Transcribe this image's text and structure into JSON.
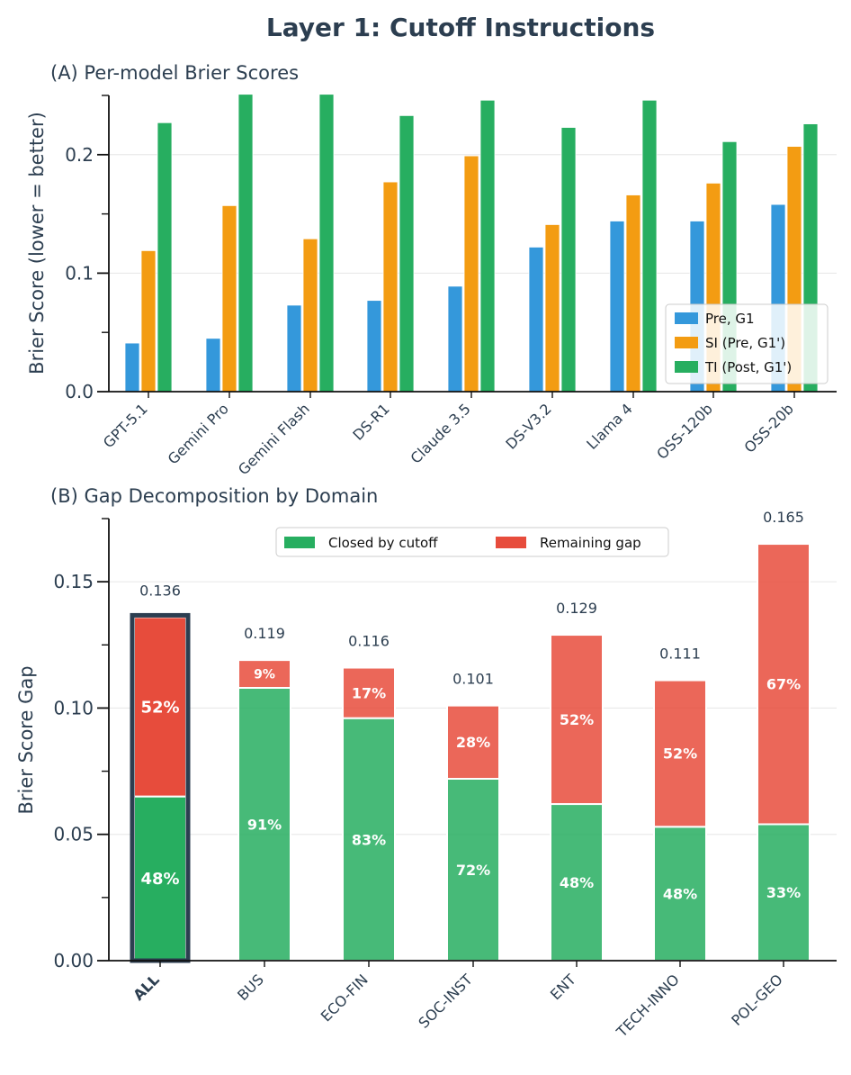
{
  "figure_title": "Layer 1: Cutoff Instructions",
  "chart_data": [
    {
      "type": "bar",
      "title": "(A) Per-model Brier Scores",
      "ylabel": "Brier Score (lower = better)",
      "xlabel": "",
      "ylim": [
        0,
        0.25
      ],
      "yticks": [
        "0.0",
        "0.1",
        "0.2"
      ],
      "categories": [
        "GPT-5.1",
        "Gemini Pro",
        "Gemini Flash",
        "DS-R1",
        "Claude 3.5",
        "DS-V3.2",
        "Llama 4",
        "OSS-120b",
        "OSS-20b"
      ],
      "series": [
        {
          "name": "Pre, G1",
          "color": "#3498db",
          "values": [
            0.041,
            0.045,
            0.073,
            0.077,
            0.089,
            0.122,
            0.144,
            0.144,
            0.158
          ]
        },
        {
          "name": "SI (Pre, G1')",
          "color": "#f39c12",
          "values": [
            0.119,
            0.157,
            0.129,
            0.177,
            0.199,
            0.141,
            0.166,
            0.176,
            0.207
          ]
        },
        {
          "name": "TI (Post, G1')",
          "color": "#27ae60",
          "values": [
            0.227,
            0.251,
            0.251,
            0.233,
            0.246,
            0.223,
            0.246,
            0.211,
            0.226
          ]
        }
      ],
      "legend_position": "lower-right",
      "grid": true
    },
    {
      "type": "bar",
      "stacked": true,
      "title": "(B) Gap Decomposition by Domain",
      "ylabel": "Brier Score Gap",
      "xlabel": "",
      "ylim": [
        0,
        0.175
      ],
      "yticks": [
        "0.00",
        "0.05",
        "0.10",
        "0.15"
      ],
      "categories": [
        "ALL",
        "BUS",
        "ECO-FIN",
        "SOC-INST",
        "ENT",
        "TECH-INNO",
        "POL-GEO"
      ],
      "highlight_category": "ALL",
      "totals": [
        0.136,
        0.119,
        0.116,
        0.101,
        0.129,
        0.111,
        0.165
      ],
      "total_labels": [
        "0.136",
        "0.119",
        "0.116",
        "0.101",
        "0.129",
        "0.111",
        "0.165"
      ],
      "series": [
        {
          "name": "Closed by cutoff",
          "color": "#27ae60",
          "values": [
            0.065,
            0.108,
            0.096,
            0.072,
            0.062,
            0.053,
            0.054
          ],
          "pct_labels": [
            "48%",
            "91%",
            "83%",
            "72%",
            "48%",
            "48%",
            "33%"
          ]
        },
        {
          "name": "Remaining gap",
          "color": "#e74c3c",
          "values": [
            0.071,
            0.011,
            0.02,
            0.029,
            0.067,
            0.058,
            0.111
          ],
          "pct_labels": [
            "52%",
            "9%",
            "17%",
            "28%",
            "52%",
            "52%",
            "67%"
          ]
        }
      ],
      "legend_position": "top-center",
      "grid": true
    }
  ]
}
